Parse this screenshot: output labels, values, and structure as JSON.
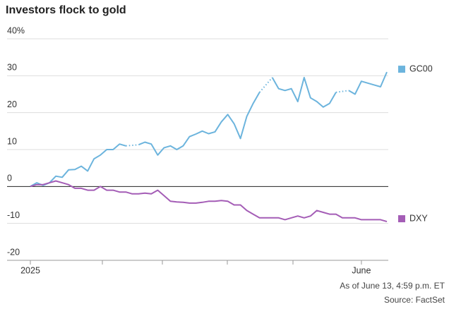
{
  "chart_data": {
    "type": "line",
    "title": "Investors flock to gold",
    "categories": [
      "2025",
      null,
      null,
      null,
      null,
      null,
      null,
      null,
      null,
      null,
      null,
      null,
      null,
      null,
      null,
      null,
      null,
      null,
      null,
      null,
      null,
      null,
      null,
      null,
      null,
      null,
      null,
      null,
      null,
      null,
      null,
      null,
      null,
      null,
      null,
      null,
      null,
      null,
      null,
      null,
      null,
      null,
      null,
      null,
      null,
      null,
      null,
      null,
      null,
      null,
      null,
      null,
      "June",
      null,
      null,
      null,
      null
    ],
    "series": [
      {
        "name": "GC00",
        "color": "#6cb4dd",
        "values": [
          0,
          1,
          0.3,
          1,
          2.8,
          2.5,
          4.5,
          4.6,
          5.5,
          4.2,
          7.5,
          8.5,
          10,
          10,
          11.5,
          11,
          null,
          11.3,
          12,
          11.5,
          8.5,
          10.5,
          11,
          10,
          11,
          13.5,
          14.2,
          15,
          14.3,
          14.8,
          17.5,
          19.5,
          17,
          13,
          19,
          22.5,
          25.5,
          null,
          29.5,
          26.5,
          26,
          26.5,
          23,
          29.5,
          24,
          23,
          21.5,
          22.5,
          25.5,
          null,
          26,
          25,
          28.5,
          28,
          27.5,
          27,
          31
        ]
      },
      {
        "name": "DXY",
        "color": "#a45db6",
        "values": [
          0,
          0.5,
          0.5,
          1,
          1.5,
          1,
          0.5,
          -0.5,
          -0.5,
          -1,
          -1,
          0,
          -1,
          -1,
          -1.5,
          -1.5,
          -2,
          -2,
          -1.8,
          -2,
          -1,
          -2.5,
          -4,
          -4.2,
          -4.3,
          -4.5,
          -4.5,
          -4.3,
          -4,
          -4,
          -3.8,
          -4,
          -5,
          -5,
          -6.5,
          -7.5,
          -8.5,
          -8.5,
          -8.5,
          -8.5,
          -9,
          -8.5,
          -8,
          -8.5,
          -8,
          -6.5,
          -7,
          -7.5,
          -7.5,
          -8.5,
          -8.5,
          -8.5,
          -9,
          -9,
          -9,
          -9,
          -9.5
        ]
      }
    ],
    "ylim": [
      -20,
      40
    ],
    "yticks": [
      -20,
      -10,
      0,
      10,
      20,
      {
        "value": 40,
        "label": "40%"
      },
      30
    ],
    "grid": true,
    "notes": [
      "As of June 13, 4:59 p.m. ET",
      "Source: FactSet"
    ]
  }
}
